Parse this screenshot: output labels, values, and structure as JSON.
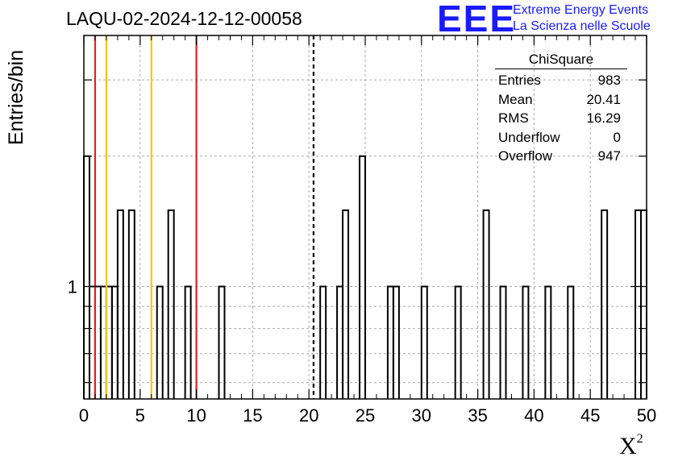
{
  "title": "LAQU-02-2024-12-12-00058",
  "logo": {
    "mark": "EEE",
    "line1": "Extreme Energy Events",
    "line2": "La Scienza nelle Scuole"
  },
  "stats_box": {
    "title": "ChiSquare",
    "rows": [
      {
        "label": "Entries",
        "value": "983"
      },
      {
        "label": "Mean",
        "value": "20.41"
      },
      {
        "label": "RMS",
        "value": "16.29"
      },
      {
        "label": "Underflow",
        "value": "0"
      },
      {
        "label": "Overflow",
        "value": "947"
      }
    ]
  },
  "chart_data": {
    "type": "bar",
    "histogram": true,
    "title": "LAQU-02-2024-12-12-00058",
    "xlabel": "X",
    "xlabel_superscript": "2",
    "ylabel": "Entries/bin",
    "xlim": [
      0,
      50
    ],
    "y_log_scale": true,
    "ylim": [
      0.55,
      3.8
    ],
    "grid": true,
    "x_ticks": [
      0,
      5,
      10,
      15,
      20,
      25,
      30,
      35,
      40,
      45,
      50
    ],
    "x_tick_labels": [
      "0",
      "5",
      "10",
      "15",
      "20",
      "25",
      "30",
      "35",
      "40",
      "45",
      "50"
    ],
    "y_ticks": [
      1
    ],
    "y_tick_labels": [
      "1"
    ],
    "bin_width": 0.5,
    "bins": [
      {
        "x0": 0.0,
        "value": 2
      },
      {
        "x0": 0.5,
        "value": 1
      },
      {
        "x0": 1.0,
        "value": 1
      },
      {
        "x0": 1.5,
        "value": 1
      },
      {
        "x0": 2.0,
        "value": 1
      },
      {
        "x0": 2.5,
        "value": 1
      },
      {
        "x0": 3.0,
        "value": 1.5
      },
      {
        "x0": 4.0,
        "value": 1.5
      },
      {
        "x0": 6.5,
        "value": 1
      },
      {
        "x0": 7.5,
        "value": 1.5
      },
      {
        "x0": 9.0,
        "value": 1
      },
      {
        "x0": 12.0,
        "value": 1
      },
      {
        "x0": 21.0,
        "value": 1
      },
      {
        "x0": 22.5,
        "value": 1
      },
      {
        "x0": 23.0,
        "value": 1.5
      },
      {
        "x0": 24.5,
        "value": 2
      },
      {
        "x0": 27.0,
        "value": 1
      },
      {
        "x0": 27.5,
        "value": 1
      },
      {
        "x0": 30.0,
        "value": 1
      },
      {
        "x0": 33.0,
        "value": 1
      },
      {
        "x0": 35.5,
        "value": 1.5
      },
      {
        "x0": 37.0,
        "value": 1
      },
      {
        "x0": 39.0,
        "value": 1
      },
      {
        "x0": 41.0,
        "value": 1
      },
      {
        "x0": 43.0,
        "value": 1
      },
      {
        "x0": 46.0,
        "value": 1.5
      },
      {
        "x0": 49.0,
        "value": 1.5
      },
      {
        "x0": 49.5,
        "value": 1.5
      }
    ],
    "vertical_lines": [
      {
        "x": 1.0,
        "color": "#dd2222",
        "style": "solid"
      },
      {
        "x": 2.0,
        "color": "#f5c518",
        "style": "solid"
      },
      {
        "x": 6.0,
        "color": "#f5c518",
        "style": "solid"
      },
      {
        "x": 10.0,
        "color": "#dd2222",
        "style": "solid"
      },
      {
        "x": 20.41,
        "color": "#000000",
        "style": "dashed"
      }
    ]
  }
}
